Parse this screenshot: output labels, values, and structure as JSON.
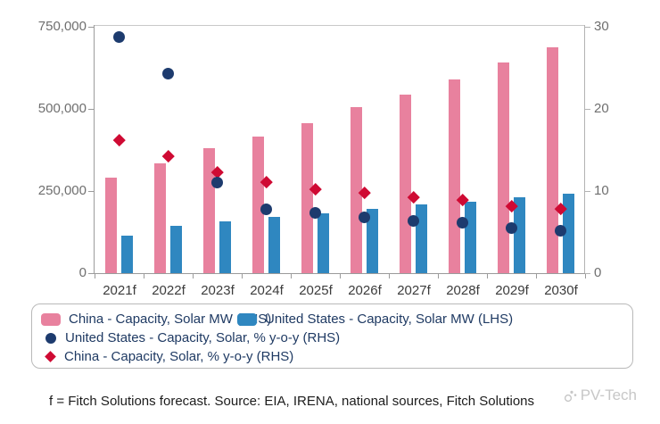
{
  "chart_data": {
    "type": "bar",
    "subtype": "grouped bars (LHS) with scatter markers (RHS)",
    "title": "",
    "categories": [
      "2021f",
      "2022f",
      "2023f",
      "2024f",
      "2025f",
      "2026f",
      "2027f",
      "2028f",
      "2029f",
      "2030f"
    ],
    "series": [
      {
        "name": "China - Capacity, Solar MW (LHS)",
        "type": "bar",
        "axis": "LHS",
        "marker": "square",
        "color": "#e8819e",
        "values": [
          290000,
          335000,
          380000,
          417000,
          457000,
          505000,
          544000,
          590000,
          641000,
          688000
        ]
      },
      {
        "name": "United States - Capacity, Solar MW (LHS)",
        "type": "bar",
        "axis": "LHS",
        "marker": "square",
        "color": "#2f87c0",
        "values": [
          115000,
          143000,
          157000,
          170000,
          183000,
          196000,
          208000,
          218000,
          230000,
          241000
        ]
      },
      {
        "name": "United States - Capacity, Solar, % y-o-y (RHS)",
        "type": "scatter",
        "axis": "RHS",
        "marker": "circle",
        "color": "#1d3b6e",
        "values": [
          28.7,
          24.3,
          11.0,
          7.8,
          7.3,
          6.8,
          6.4,
          6.1,
          5.5,
          5.2
        ]
      },
      {
        "name": "China - Capacity, Solar, % y-o-y (RHS)",
        "type": "scatter",
        "axis": "RHS",
        "marker": "diamond",
        "color": "#cf0a33",
        "values": [
          16.2,
          14.3,
          12.3,
          11.1,
          10.2,
          9.8,
          9.3,
          8.9,
          8.2,
          7.9
        ]
      }
    ],
    "lhs_axis": {
      "tick_labels": [
        "750,000",
        "500,000",
        "250,000",
        "0"
      ],
      "tick_values": [
        750000,
        500000,
        250000,
        0
      ],
      "range": [
        0,
        750000
      ]
    },
    "rhs_axis": {
      "tick_labels": [
        "30",
        "20",
        "10",
        "0"
      ],
      "tick_values": [
        30,
        20,
        10,
        0
      ],
      "range": [
        0,
        30
      ]
    },
    "grid": false,
    "legend_position": "bottom"
  },
  "colors": {
    "china_bar": "#e8819e",
    "us_bar": "#2f87c0",
    "us_dot": "#1d3b6e",
    "china_diamond": "#cf0a33",
    "legend_text": "#1f3a63",
    "axis_line": "#9b9b9b",
    "frame_line": "#c9c9c9"
  },
  "footer": {
    "note": "f = Fitch Solutions forecast. Source: EIA, IRENA, national sources, Fitch Solutions",
    "watermark": "PV-Tech"
  }
}
